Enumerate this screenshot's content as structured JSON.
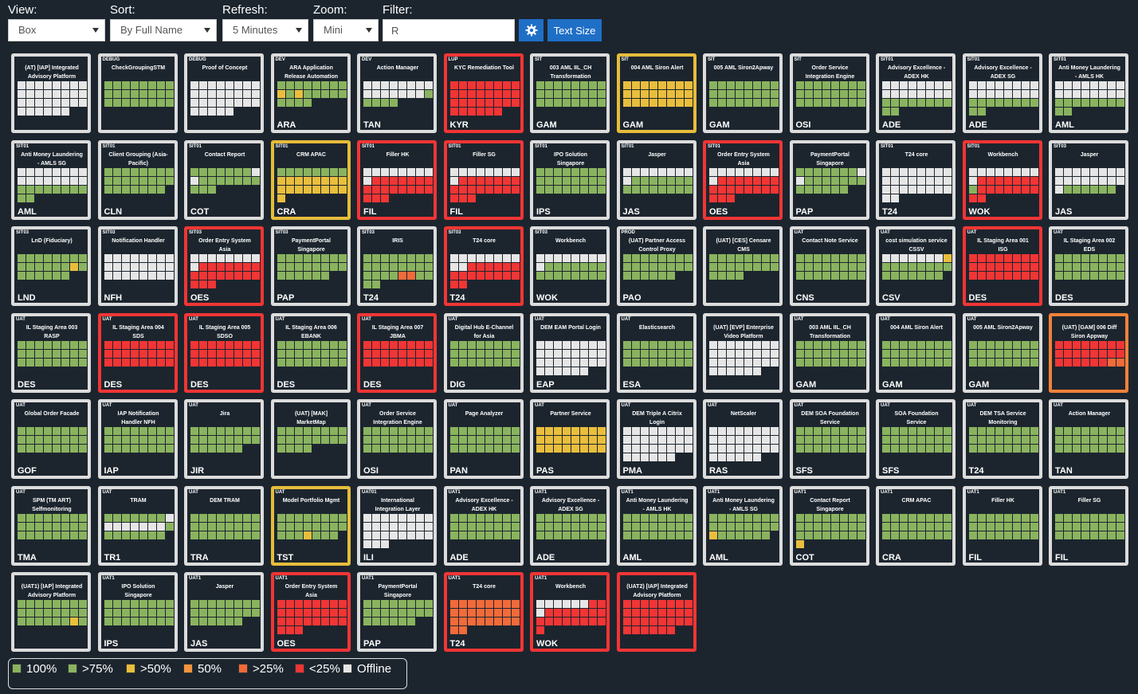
{
  "colors": {
    "g": "#8ab35f",
    "y": "#e9be3d",
    "o": "#f5933e",
    "p": "#f26a3a",
    "r": "#f13535",
    "w": "#e6e6e6",
    "border_ok": "#dcdcdc",
    "border_yellow": "#e6bc3b",
    "border_red": "#f13535",
    "border_orange": "#f2813a"
  },
  "toolbar": {
    "view": {
      "label": "View:",
      "value": "Box"
    },
    "sort": {
      "label": "Sort:",
      "value": "By Full Name"
    },
    "refresh": {
      "label": "Refresh:",
      "value": "5 Minutes"
    },
    "zoom": {
      "label": "Zoom:",
      "value": "Mini"
    },
    "filter": {
      "label": "Filter:",
      "value": "R"
    },
    "settings_icon": "gear-icon",
    "text_size_label": "Text Size"
  },
  "tiles": [
    {
      "env": "",
      "name": "(AT) [IAP] Integrated Advisory Platform",
      "code": "",
      "border": "ok",
      "cells": "wwwwwwwwwwwwwwwwwwwwwwwwwwwwww"
    },
    {
      "env": "DEBUG",
      "name": "CheckGroupingSTM",
      "code": "",
      "border": "ok",
      "cells": "gggggggggggggggggggggggg"
    },
    {
      "env": "DEBUG",
      "name": "Proof of Concept",
      "code": "",
      "border": "ok",
      "cells": "wwwwwwwwwwwwwwwwwwwwwwwwwwwww"
    },
    {
      "env": "DEV",
      "name": "ARA Application Release Automation",
      "code": "ARA",
      "border": "ok",
      "cells": "ggggggggygyggggggggg"
    },
    {
      "env": "DEV",
      "name": "Action Manager",
      "code": "TAN",
      "border": "ok",
      "cells": "wwwwwwwwwwwwwwwggggg"
    },
    {
      "env": "LUP",
      "name": "KYC Remediation Tool",
      "code": "KYR",
      "border": "red",
      "cells": "rrrrrrrrrrrrrrrrrrrrrrrrrrrrrr"
    },
    {
      "env": "SIT",
      "name": "003 AML IIL_CH Transformation",
      "code": "GAM",
      "border": "ok",
      "cells": "gggggggggggggggggggggggg"
    },
    {
      "env": "SIT",
      "name": "004 AML Siron Alert",
      "code": "GAM",
      "border": "yellow",
      "cells": "yyyyyyyyyyyyyyyyyyyyyyyy"
    },
    {
      "env": "SIT",
      "name": "005 AML Siron2Apway",
      "code": "GAM",
      "border": "ok",
      "cells": "gggggggggggggggggggggggg"
    },
    {
      "env": "SIT",
      "name": "Order Service Integration Engine",
      "code": "OSI",
      "border": "ok",
      "cells": "gggggggggggggggggggggggg"
    },
    {
      "env": "SIT01",
      "name": "Advisory Excellence - ADEX HK",
      "code": "ADE",
      "border": "ok",
      "cells": "wwwwwwwwwwwwwwwwgggggggggg"
    },
    {
      "env": "SIT01",
      "name": "Advisory Excellence - ADEX SG",
      "code": "ADE",
      "border": "ok",
      "cells": "wwwwwwwwwwwwwwwwgggggggggg"
    },
    {
      "env": "SIT01",
      "name": "Anti Money Laundering - AMLS HK",
      "code": "AML",
      "border": "ok",
      "cells": "wwwwwwwwwwwwwwwwgggggggggg"
    },
    {
      "env": "SIT01",
      "name": "Anti Money Laundering - AMLS SG",
      "code": "AML",
      "border": "ok",
      "cells": "wwwwwwwwwwwwwwwwgggggggggg"
    },
    {
      "env": "SIT01",
      "name": "Client Grouping (Asia-Pacific)",
      "code": "CLN",
      "border": "ok",
      "cells": "ggggggggggggggggggggggg"
    },
    {
      "env": "SIT01",
      "name": "Contact Report",
      "code": "COT",
      "border": "ok",
      "cells": "gggggggwwgggggggggg"
    },
    {
      "env": "SIT01",
      "name": "CRM APAC",
      "code": "CRA",
      "border": "yellow",
      "cells": "ggggggggyyyyyyyyyyyyyyyyy"
    },
    {
      "env": "SIT01",
      "name": "Filler HK",
      "code": "FIL",
      "border": "red",
      "cells": "wwwwwwwwwrrrrrrrrrrrrrrrrrr"
    },
    {
      "env": "SIT01",
      "name": "Filler SG",
      "code": "FIL",
      "border": "red",
      "cells": "wwwwwwwwwrrrrrrrrrrrrrrrrrr"
    },
    {
      "env": "SIT01",
      "name": "IPO Solution Singapore",
      "code": "IPS",
      "border": "ok",
      "cells": "gggggggggggggggggggggggg"
    },
    {
      "env": "SIT01",
      "name": "Jasper",
      "code": "JAS",
      "border": "ok",
      "cells": "wwwwwwwwwggggggggggggggg"
    },
    {
      "env": "SIT01",
      "name": "Order Entry System Asia",
      "code": "OES",
      "border": "red",
      "cells": "wwwwwwwwwrrrrrrrrrrrrrrrrrr"
    },
    {
      "env": "",
      "name": "PaymentPortal Singapore",
      "code": "PAP",
      "border": "ok",
      "cells": "gggggggwwggggggggggggg"
    },
    {
      "env": "SIT01",
      "name": "T24 core",
      "code": "T24",
      "border": "ok",
      "cells": "wwwwwwwwwwwwwwwwwwwwwwwwww"
    },
    {
      "env": "SIT01",
      "name": "Workbench",
      "code": "WOK",
      "border": "red",
      "cells": "wwwwwwwwwrrrrrrrgrrrrrrrrr"
    },
    {
      "env": "SIT03",
      "name": "Jasper",
      "code": "JAS",
      "border": "ok",
      "cells": "wwwwwwwwwwwwwwwwwgggggg"
    },
    {
      "env": "SIT03",
      "name": "LnD (Fiduciary)",
      "code": "LND",
      "border": "ok",
      "cells": "ggggggggggggggyggggggg"
    },
    {
      "env": "SIT03",
      "name": "Notification Handler",
      "code": "NFH",
      "border": "ok",
      "cells": "wwwwwwwwwwwwwwwwwwwwwwww"
    },
    {
      "env": "SIT03",
      "name": "Order Entry System Asia",
      "code": "OES",
      "border": "red",
      "cells": "wwwwwwwwwrrrrrrrrrrrrrrrrrr"
    },
    {
      "env": "SIT03",
      "name": "PaymentPortal Singapore",
      "code": "PAP",
      "border": "ok",
      "cells": "gggggggggggggggggggggg"
    },
    {
      "env": "SIT03",
      "name": "IRIS",
      "code": "T24",
      "border": "ok",
      "cells": "ggggggggggggggggggggppgggg"
    },
    {
      "env": "SIT03",
      "name": "T24 core",
      "code": "T24",
      "border": "red",
      "cells": "wwwwwwwwwwrrrrrrrrrrrrrrrr"
    },
    {
      "env": "SIT03",
      "name": "Workbench",
      "code": "WOK",
      "border": "ok",
      "cells": "wwwwwwwwwggggggggggggggg"
    },
    {
      "env": "PROD",
      "name": "(UAT) Partner Access Control Proxy",
      "code": "PAO",
      "border": "ok",
      "cells": "gggggggggggggggggggggg"
    },
    {
      "env": "",
      "name": "(UAT) [CES] Censare CMS",
      "code": "",
      "border": "ok",
      "cells": "gggggggggggggggggggg"
    },
    {
      "env": "UAT",
      "name": "Contact Note Service",
      "code": "CNS",
      "border": "ok",
      "cells": "gggggggggggggggggggggggg"
    },
    {
      "env": "UAT",
      "name": "cost simulation service CSSV",
      "code": "CSV",
      "border": "ok",
      "cells": "wwwwwwwyggggggggggggggg"
    },
    {
      "env": "UAT",
      "name": "IL Staging Area 001 ISG",
      "code": "DES",
      "border": "red",
      "cells": "rrrrrrrrrrrrrrrrrrrrrrrr"
    },
    {
      "env": "UAT",
      "name": "IL Staging Area 002 EDS",
      "code": "DES",
      "border": "ok",
      "cells": "gggggggggggggggggggggggg"
    },
    {
      "env": "UAT",
      "name": "IL Staging Area 003 RASP",
      "code": "DES",
      "border": "ok",
      "cells": "gggggggggggggggggggggggg"
    },
    {
      "env": "UAT",
      "name": "IL Staging Area 004 SDS",
      "code": "DES",
      "border": "red",
      "cells": "rrrrrrrrrrrrrrrrrrrrrrrr"
    },
    {
      "env": "UAT",
      "name": "IL Staging Area 005 SDSO",
      "code": "DES",
      "border": "red",
      "cells": "rrrrrrrrrrrrrrrrrrrrrrrr"
    },
    {
      "env": "UAT",
      "name": "IL Staging Area 006 EBANK",
      "code": "DES",
      "border": "ok",
      "cells": "gggggggggggggggggggggggg"
    },
    {
      "env": "UAT",
      "name": "IL Staging Area 007 JBMA",
      "code": "DES",
      "border": "red",
      "cells": "rrrrrrrrrrrrrrrrrrrrrrrr"
    },
    {
      "env": "UAT",
      "name": "Digital Hub E-Channel for Asia",
      "code": "DIG",
      "border": "ok",
      "cells": "gggggggggggggggggggggggg"
    },
    {
      "env": "UAT",
      "name": "DEM EAM Portal Login",
      "code": "EAP",
      "border": "ok",
      "cells": "wwwwwwwwwwwwwwwwwwwwwwwwwwwwww"
    },
    {
      "env": "UAT",
      "name": "Elasticsearch",
      "code": "ESA",
      "border": "ok",
      "cells": "gggggggggggggggggggggggg"
    },
    {
      "env": "",
      "name": "(UAT) [EVP] Enterprise Video Platform",
      "code": "",
      "border": "ok",
      "cells": "wwwwwwwwwwwwwwwwwwwwwwwwwwwwww"
    },
    {
      "env": "UAT",
      "name": "003 AML IIL_CH Transformation",
      "code": "GAM",
      "border": "ok",
      "cells": "gggggggggggggggggggggggg"
    },
    {
      "env": "UAT",
      "name": "004 AML Siron Alert",
      "code": "GAM",
      "border": "ok",
      "cells": "gggggggggggggggggggggggg"
    },
    {
      "env": "UAT",
      "name": "005 AML Siron2Apway",
      "code": "GAM",
      "border": "ok",
      "cells": "gggggggggggggggggggggggg"
    },
    {
      "env": "",
      "name": "(UAT) [GAM] 006 Diff Siron Appway",
      "code": "",
      "border": "orange",
      "cells": "rrrrrrrrrrrrrrrrrrrrrrpp"
    },
    {
      "env": "UAT",
      "name": "Global Order Facade",
      "code": "GOF",
      "border": "ok",
      "cells": "gggggggggggggggggggggggg"
    },
    {
      "env": "UAT",
      "name": "IAP Notification Handler NFH",
      "code": "IAP",
      "border": "ok",
      "cells": "gggggggggggggggggggggggg"
    },
    {
      "env": "UAT",
      "name": "Jira",
      "code": "JIR",
      "border": "ok",
      "cells": "gggggggggggggggggggggg"
    },
    {
      "env": "",
      "name": "(UAT) [MAK] MarketMap",
      "code": "",
      "border": "ok",
      "cells": "gggggggggggggggggggg"
    },
    {
      "env": "UAT",
      "name": "Order Service Integration Engine",
      "code": "OSI",
      "border": "ok",
      "cells": "gggggggggggggggggggggggg"
    },
    {
      "env": "UAT",
      "name": "Page Analyzer",
      "code": "PAN",
      "border": "ok",
      "cells": "gggggggggggggggggggggggg"
    },
    {
      "env": "UAT",
      "name": "Partner Service",
      "code": "PAS",
      "border": "ok",
      "cells": "yyyyyyyyyyyyyyyyyyyyyyyy"
    },
    {
      "env": "UAT",
      "name": "DEM Triple A Citrix Login",
      "code": "PMA",
      "border": "ok",
      "cells": "wwwwwwwwwwwwwwwwwwwwwwwwwwwwww"
    },
    {
      "env": "UAT",
      "name": "NetScaler",
      "code": "RAS",
      "border": "ok",
      "cells": "wwwwwwwwwwwwwwwwwwwwwwwwwwwwww"
    },
    {
      "env": "UAT",
      "name": "DEM SOA Foundation Service",
      "code": "SFS",
      "border": "ok",
      "cells": "gggggggggggggggggggggggg"
    },
    {
      "env": "UAT",
      "name": "SOA Foundation Service",
      "code": "SFS",
      "border": "ok",
      "cells": "gggggggggggggggggggggggg"
    },
    {
      "env": "UAT",
      "name": "DEM TSA Service Monitoring",
      "code": "T24",
      "border": "ok",
      "cells": "gggggggggggggggggggggggg"
    },
    {
      "env": "UAT",
      "name": "Action Manager",
      "code": "TAN",
      "border": "ok",
      "cells": "gggggggggggggggggggggggg"
    },
    {
      "env": "UAT",
      "name": "SPM (TM ART) Selfmonitoring",
      "code": "TMA",
      "border": "ok",
      "cells": "gggggggggggggggggggggggg"
    },
    {
      "env": "UAT",
      "name": "TRAM",
      "code": "TR1",
      "border": "ok",
      "cells": "gggggggwwwwwwwwgggggggg"
    },
    {
      "env": "UAT",
      "name": "DEM TRAM",
      "code": "TRA",
      "border": "ok",
      "cells": "gggggggggggggggggggggggg"
    },
    {
      "env": "UAT",
      "name": "Model Portfolio Mgmt",
      "code": "TST",
      "border": "yellow",
      "cells": "gggggggggggggggggggyggg"
    },
    {
      "env": "UAT01",
      "name": "International Integration Layer",
      "code": "ILI",
      "border": "ok",
      "cells": "wwwwwwwwwwwwwwwwwwwwwwwwwww"
    },
    {
      "env": "UAT1",
      "name": "Advisory Excellence - ADEX HK",
      "code": "ADE",
      "border": "ok",
      "cells": "gggggggggggggggggggggggg"
    },
    {
      "env": "UAT1",
      "name": "Advisory Excellence - ADEX SG",
      "code": "ADE",
      "border": "ok",
      "cells": "gggggggggggggggggggggggg"
    },
    {
      "env": "UAT1",
      "name": "Anti Money Laundering - AMLS HK",
      "code": "AML",
      "border": "ok",
      "cells": "gggggggggggggggggggggggg"
    },
    {
      "env": "UAT1",
      "name": "Anti Money Laundering - AMLS SG",
      "code": "AML",
      "border": "ok",
      "cells": "ggggggggggggggggygggggg"
    },
    {
      "env": "UAT1",
      "name": "Contact Report Singapore",
      "code": "COT",
      "border": "ok",
      "cells": "ggggggggggggggggggggggggy"
    },
    {
      "env": "UAT1",
      "name": "CRM APAC",
      "code": "CRA",
      "border": "ok",
      "cells": "gggggggggggggggggggggggg"
    },
    {
      "env": "UAT1",
      "name": "Filler HK",
      "code": "FIL",
      "border": "ok",
      "cells": "gggggggggggggggggggggggg"
    },
    {
      "env": "UAT1",
      "name": "Filler SG",
      "code": "FIL",
      "border": "ok",
      "cells": "gggggggggggggggggggggggg"
    },
    {
      "env": "",
      "name": "(UAT1) [IAP] Integrated Advisory Platform",
      "code": "",
      "border": "ok",
      "cells": "ggggggggggggggggggggggyg"
    },
    {
      "env": "UAT1",
      "name": "IPO Solution Singapore",
      "code": "IPS",
      "border": "ok",
      "cells": "gggggggggggggggggggggggg"
    },
    {
      "env": "UAT1",
      "name": "Jasper",
      "code": "JAS",
      "border": "ok",
      "cells": "gggggggggggggggggggggg"
    },
    {
      "env": "UAT1",
      "name": "Order Entry System Asia",
      "code": "OES",
      "border": "red",
      "cells": "rrrrrrrrrrrrrrrrrrrrrrrrrrr"
    },
    {
      "env": "UAT1",
      "name": "PaymentPortal Singapore",
      "code": "PAP",
      "border": "ok",
      "cells": "gggggggggggggggggggggg"
    },
    {
      "env": "UAT1",
      "name": "T24 core",
      "code": "T24",
      "border": "red",
      "cells": "pppppppppppppppppppppppppp"
    },
    {
      "env": "UAT1",
      "name": "Workbench",
      "code": "WOK",
      "border": "red",
      "cells": "wwwwwwrrwrrrrrrrrrrrrrrrr"
    },
    {
      "env": "",
      "name": "(UAT2) [IAP] Integrated Advisory Platform",
      "code": "",
      "border": "red",
      "cells": "rrrrrrrrrrrrrrrrrrrrrrrrrrrrrr"
    }
  ],
  "legend": [
    {
      "label": "100%",
      "color": "#8ab35f"
    },
    {
      "label": ">75%",
      "color": "#8ab35f"
    },
    {
      "label": ">50%",
      "color": "#e9be3d"
    },
    {
      "label": "50%",
      "color": "#f5933e"
    },
    {
      "label": ">25%",
      "color": "#f26a3a"
    },
    {
      "label": "<25%",
      "color": "#f13535"
    },
    {
      "label": "Offline",
      "color": "#e6e6e6"
    }
  ]
}
